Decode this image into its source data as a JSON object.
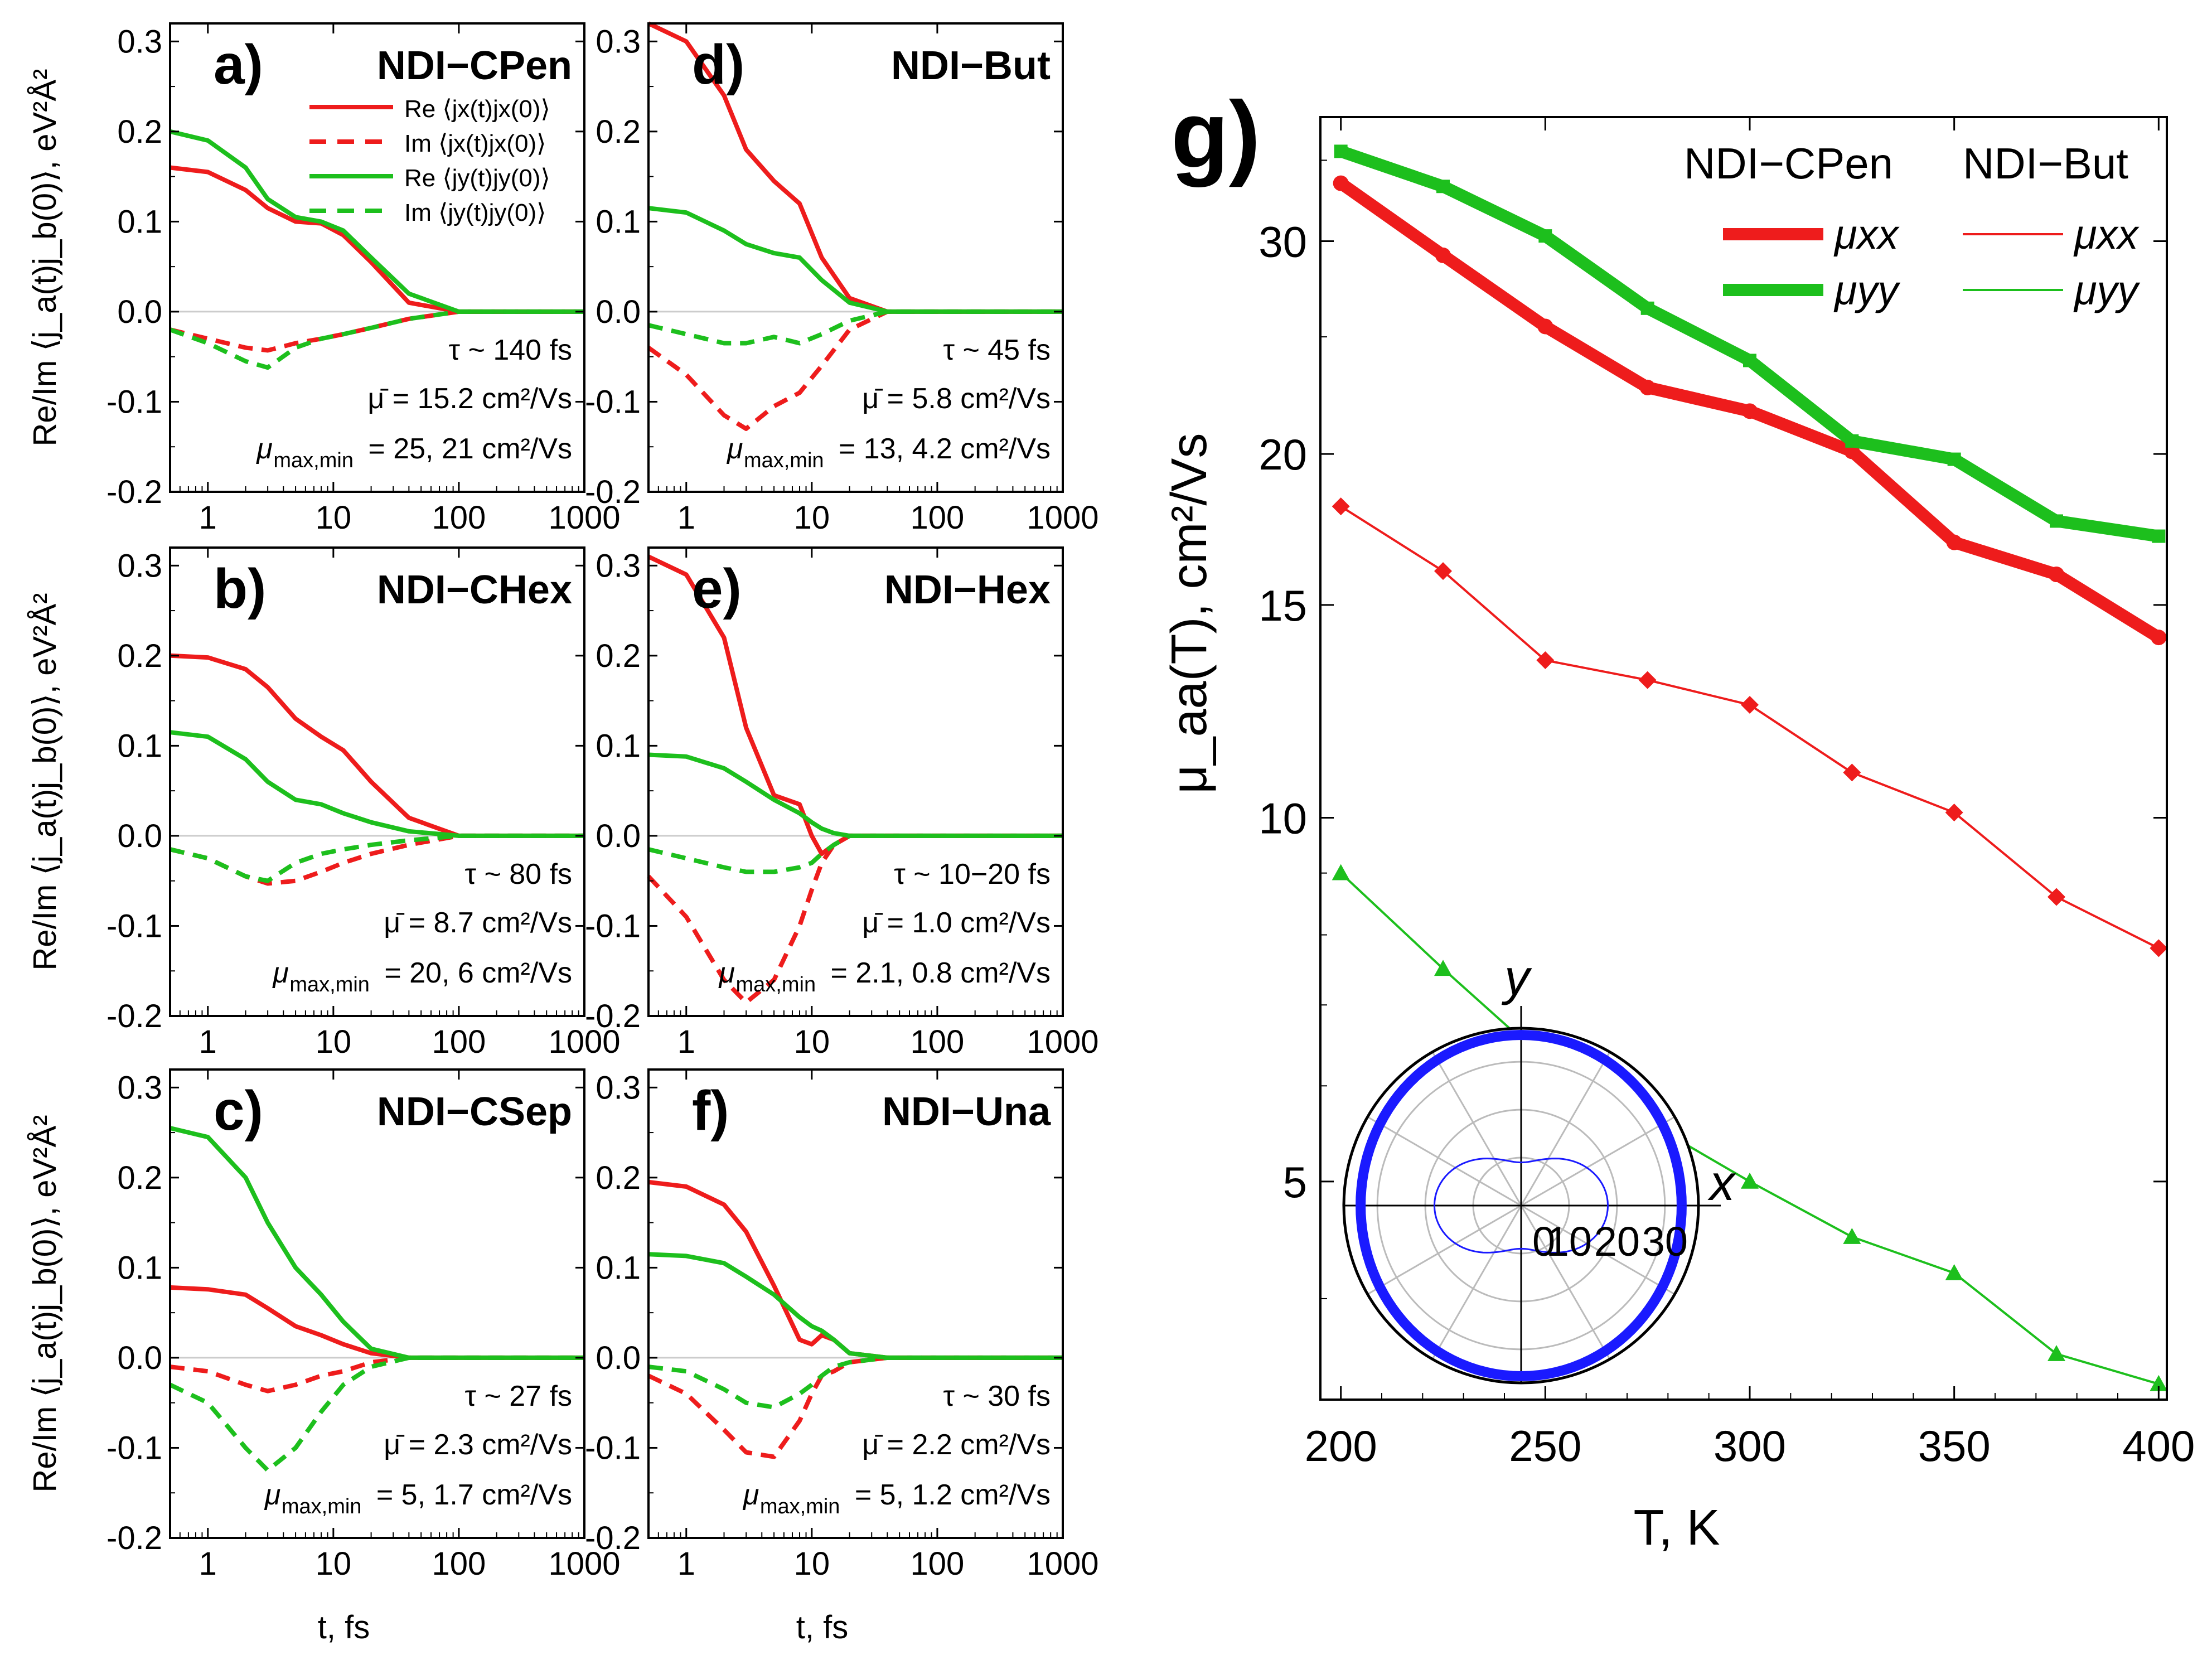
{
  "chart_data": [
    {
      "type": "line",
      "panel": "a)",
      "title": "NDI−CPen",
      "xscale": "log",
      "xlim": [
        0.5,
        1000
      ],
      "ylim": [
        -0.2,
        0.32
      ],
      "xticks": [
        "1",
        "10",
        "100",
        "1000"
      ],
      "yticks": [
        "0.3",
        "0.2",
        "0.1",
        "0.0",
        "-0.1",
        "-0.2"
      ],
      "xlabel": "t, fs",
      "ylabel": "Re/Im ⟨j_a(t)j_b(0)⟩, eV²Å²",
      "legend": [
        "Re ⟨jx(t)jx(0)⟩",
        "Im ⟨jx(t)jx(0)⟩",
        "Re ⟨jy(t)jy(0)⟩",
        "Im ⟨jy(t)jy(0)⟩"
      ],
      "tau_text": "τ ~ 140 fs",
      "mu_bar_text": "μ̄ = 15.2 cm²/Vs",
      "mu_maxmin_text": "= 25, 21 cm²/Vs",
      "series": [
        {
          "name": "Re jx",
          "x": [
            0.5,
            1,
            2,
            3,
            5,
            8,
            12,
            20,
            40,
            100,
            1000
          ],
          "y": [
            0.16,
            0.155,
            0.135,
            0.115,
            0.1,
            0.098,
            0.085,
            0.055,
            0.01,
            0.0,
            0.0
          ]
        },
        {
          "name": "Im jx",
          "x": [
            0.5,
            1,
            2,
            3,
            5,
            8,
            12,
            20,
            40,
            100,
            1000
          ],
          "y": [
            -0.02,
            -0.03,
            -0.04,
            -0.043,
            -0.035,
            -0.03,
            -0.025,
            -0.018,
            -0.008,
            0.0,
            0.0
          ]
        },
        {
          "name": "Re jy",
          "x": [
            0.5,
            1,
            2,
            3,
            5,
            8,
            12,
            20,
            40,
            100,
            1000
          ],
          "y": [
            0.2,
            0.19,
            0.16,
            0.125,
            0.105,
            0.1,
            0.09,
            0.06,
            0.02,
            0.0,
            0.0
          ]
        },
        {
          "name": "Im jy",
          "x": [
            0.5,
            1,
            2,
            3,
            5,
            8,
            12,
            20,
            40,
            100,
            1000
          ],
          "y": [
            -0.02,
            -0.035,
            -0.055,
            -0.062,
            -0.04,
            -0.03,
            -0.025,
            -0.018,
            -0.008,
            0.0,
            0.0
          ]
        }
      ]
    },
    {
      "type": "line",
      "panel": "b)",
      "title": "NDI−CHex",
      "xscale": "log",
      "xlim": [
        0.5,
        1000
      ],
      "ylim": [
        -0.2,
        0.32
      ],
      "xticks": [
        "1",
        "10",
        "100",
        "1000"
      ],
      "yticks": [
        "0.3",
        "0.2",
        "0.1",
        "0.0",
        "-0.1",
        "-0.2"
      ],
      "xlabel": "t, fs",
      "ylabel": "Re/Im ⟨j_a(t)j_b(0)⟩, eV²Å²",
      "tau_text": "τ ~ 80 fs",
      "mu_bar_text": "μ̄ = 8.7 cm²/Vs",
      "mu_maxmin_text": "= 20, 6 cm²/Vs",
      "series": [
        {
          "name": "Re jx",
          "x": [
            0.5,
            1,
            2,
            3,
            5,
            8,
            12,
            20,
            40,
            100,
            1000
          ],
          "y": [
            0.2,
            0.198,
            0.185,
            0.165,
            0.13,
            0.11,
            0.095,
            0.06,
            0.02,
            0.0,
            0.0
          ]
        },
        {
          "name": "Im jx",
          "x": [
            0.5,
            1,
            2,
            3,
            5,
            8,
            12,
            20,
            40,
            100,
            1000
          ],
          "y": [
            -0.015,
            -0.025,
            -0.045,
            -0.053,
            -0.05,
            -0.04,
            -0.03,
            -0.02,
            -0.01,
            0.0,
            0.0
          ]
        },
        {
          "name": "Re jy",
          "x": [
            0.5,
            1,
            2,
            3,
            5,
            8,
            12,
            20,
            40,
            100,
            1000
          ],
          "y": [
            0.115,
            0.11,
            0.085,
            0.06,
            0.04,
            0.035,
            0.025,
            0.015,
            0.005,
            0.0,
            0.0
          ]
        },
        {
          "name": "Im jy",
          "x": [
            0.5,
            1,
            2,
            3,
            5,
            8,
            12,
            20,
            40,
            100,
            1000
          ],
          "y": [
            -0.015,
            -0.025,
            -0.045,
            -0.05,
            -0.03,
            -0.02,
            -0.015,
            -0.01,
            -0.005,
            0.0,
            0.0
          ]
        }
      ]
    },
    {
      "type": "line",
      "panel": "c)",
      "title": "NDI−CSep",
      "xscale": "log",
      "xlim": [
        0.5,
        1000
      ],
      "ylim": [
        -0.2,
        0.32
      ],
      "xticks": [
        "1",
        "10",
        "100",
        "1000"
      ],
      "yticks": [
        "0.3",
        "0.2",
        "0.1",
        "0.0",
        "-0.1",
        "-0.2"
      ],
      "xlabel": "t, fs",
      "ylabel": "Re/Im ⟨j_a(t)j_b(0)⟩, eV²Å²",
      "tau_text": "τ ~ 27 fs",
      "mu_bar_text": "μ̄ = 2.3 cm²/Vs",
      "mu_maxmin_text": "= 5, 1.7 cm²/Vs",
      "series": [
        {
          "name": "Re jx",
          "x": [
            0.5,
            1,
            2,
            3,
            5,
            8,
            12,
            20,
            40,
            100,
            1000
          ],
          "y": [
            0.078,
            0.076,
            0.07,
            0.055,
            0.035,
            0.025,
            0.015,
            0.005,
            0.0,
            0.0,
            0.0
          ]
        },
        {
          "name": "Im jx",
          "x": [
            0.5,
            1,
            2,
            3,
            5,
            8,
            12,
            20,
            40,
            100,
            1000
          ],
          "y": [
            -0.01,
            -0.015,
            -0.03,
            -0.037,
            -0.03,
            -0.02,
            -0.015,
            -0.005,
            0.0,
            0.0,
            0.0
          ]
        },
        {
          "name": "Re jy",
          "x": [
            0.5,
            1,
            2,
            3,
            5,
            8,
            12,
            20,
            40,
            100,
            1000
          ],
          "y": [
            0.255,
            0.245,
            0.2,
            0.15,
            0.1,
            0.07,
            0.04,
            0.01,
            0.0,
            0.0,
            0.0
          ]
        },
        {
          "name": "Im jy",
          "x": [
            0.5,
            1,
            2,
            3,
            5,
            8,
            12,
            20,
            40,
            100,
            1000
          ],
          "y": [
            -0.03,
            -0.05,
            -0.1,
            -0.125,
            -0.1,
            -0.06,
            -0.03,
            -0.01,
            0.0,
            0.0,
            0.0
          ]
        }
      ]
    },
    {
      "type": "line",
      "panel": "d)",
      "title": "NDI−But",
      "xscale": "log",
      "xlim": [
        0.5,
        1000
      ],
      "ylim": [
        -0.2,
        0.32
      ],
      "xticks": [
        "1",
        "10",
        "100",
        "1000"
      ],
      "yticks": [
        "0.3",
        "0.2",
        "0.1",
        "0.0",
        "-0.1",
        "-0.2"
      ],
      "xlabel": "t, fs",
      "ylabel": "",
      "tau_text": "τ ~ 45 fs",
      "mu_bar_text": "μ̄ = 5.8 cm²/Vs",
      "mu_maxmin_text": "= 13, 4.2 cm²/Vs",
      "series": [
        {
          "name": "Re jx",
          "x": [
            0.5,
            1,
            2,
            3,
            5,
            8,
            12,
            20,
            40,
            100,
            1000
          ],
          "y": [
            0.32,
            0.3,
            0.24,
            0.18,
            0.145,
            0.12,
            0.06,
            0.015,
            0.0,
            0.0,
            0.0
          ]
        },
        {
          "name": "Im jx",
          "x": [
            0.5,
            1,
            2,
            3,
            5,
            8,
            12,
            20,
            40,
            100,
            1000
          ],
          "y": [
            -0.04,
            -0.07,
            -0.115,
            -0.13,
            -0.105,
            -0.09,
            -0.06,
            -0.02,
            0.0,
            0.0,
            0.0
          ]
        },
        {
          "name": "Re jy",
          "x": [
            0.5,
            1,
            2,
            3,
            5,
            8,
            12,
            20,
            40,
            100,
            1000
          ],
          "y": [
            0.115,
            0.11,
            0.09,
            0.075,
            0.065,
            0.06,
            0.035,
            0.01,
            0.0,
            0.0,
            0.0
          ]
        },
        {
          "name": "Im jy",
          "x": [
            0.5,
            1,
            2,
            3,
            5,
            8,
            12,
            20,
            40,
            100,
            1000
          ],
          "y": [
            -0.015,
            -0.025,
            -0.035,
            -0.035,
            -0.028,
            -0.035,
            -0.025,
            -0.01,
            0.0,
            0.0,
            0.0
          ]
        }
      ]
    },
    {
      "type": "line",
      "panel": "e)",
      "title": "NDI−Hex",
      "xscale": "log",
      "xlim": [
        0.5,
        1000
      ],
      "ylim": [
        -0.2,
        0.32
      ],
      "xticks": [
        "1",
        "10",
        "100",
        "1000"
      ],
      "yticks": [
        "0.3",
        "0.2",
        "0.1",
        "0.0",
        "-0.1",
        "-0.2"
      ],
      "xlabel": "t, fs",
      "ylabel": "",
      "tau_text": "τ ~ 10−20 fs",
      "mu_bar_text": "μ̄ = 1.0 cm²/Vs",
      "mu_maxmin_text": "= 2.1, 0.8 cm²/Vs",
      "series": [
        {
          "name": "Re jx",
          "x": [
            0.5,
            1,
            2,
            3,
            5,
            8,
            10,
            12,
            15,
            20,
            40,
            100,
            1000
          ],
          "y": [
            0.31,
            0.29,
            0.22,
            0.12,
            0.045,
            0.035,
            0.0,
            -0.02,
            -0.01,
            0.0,
            0.0,
            0.0,
            0.0
          ]
        },
        {
          "name": "Im jx",
          "x": [
            0.5,
            1,
            2,
            3,
            5,
            8,
            10,
            12,
            15,
            20,
            40,
            100,
            1000
          ],
          "y": [
            -0.045,
            -0.09,
            -0.16,
            -0.185,
            -0.16,
            -0.1,
            -0.06,
            -0.03,
            -0.01,
            0.0,
            0.0,
            0.0,
            0.0
          ]
        },
        {
          "name": "Re jy",
          "x": [
            0.5,
            1,
            2,
            3,
            5,
            8,
            10,
            12,
            15,
            20,
            40,
            100,
            1000
          ],
          "y": [
            0.09,
            0.088,
            0.075,
            0.06,
            0.04,
            0.025,
            0.015,
            0.008,
            0.003,
            0.0,
            0.0,
            0.0,
            0.0
          ]
        },
        {
          "name": "Im jy",
          "x": [
            0.5,
            1,
            2,
            3,
            5,
            8,
            10,
            12,
            15,
            20,
            40,
            100,
            1000
          ],
          "y": [
            -0.015,
            -0.025,
            -0.035,
            -0.04,
            -0.04,
            -0.035,
            -0.03,
            -0.02,
            -0.01,
            0.0,
            0.0,
            0.0,
            0.0
          ]
        }
      ]
    },
    {
      "type": "line",
      "panel": "f)",
      "title": "NDI−Una",
      "xscale": "log",
      "xlim": [
        0.5,
        1000
      ],
      "ylim": [
        -0.2,
        0.32
      ],
      "xticks": [
        "1",
        "10",
        "100",
        "1000"
      ],
      "yticks": [
        "0.3",
        "0.2",
        "0.1",
        "0.0",
        "-0.1",
        "-0.2"
      ],
      "xlabel": "t, fs",
      "ylabel": "",
      "tau_text": "τ ~ 30 fs",
      "mu_bar_text": "μ̄ = 2.2 cm²/Vs",
      "mu_maxmin_text": "= 5, 1.2 cm²/Vs",
      "series": [
        {
          "name": "Re jx",
          "x": [
            0.5,
            1,
            2,
            3,
            5,
            8,
            10,
            12,
            15,
            20,
            40,
            100,
            1000
          ],
          "y": [
            0.195,
            0.19,
            0.17,
            0.14,
            0.08,
            0.02,
            0.015,
            0.025,
            0.02,
            0.005,
            0.0,
            0.0,
            0.0
          ]
        },
        {
          "name": "Im jx",
          "x": [
            0.5,
            1,
            2,
            3,
            5,
            8,
            10,
            12,
            15,
            20,
            40,
            100,
            1000
          ],
          "y": [
            -0.02,
            -0.04,
            -0.08,
            -0.105,
            -0.11,
            -0.07,
            -0.04,
            -0.02,
            -0.015,
            -0.005,
            0.0,
            0.0,
            0.0
          ]
        },
        {
          "name": "Re jy",
          "x": [
            0.5,
            1,
            2,
            3,
            5,
            8,
            10,
            12,
            15,
            20,
            40,
            100,
            1000
          ],
          "y": [
            0.115,
            0.113,
            0.105,
            0.09,
            0.07,
            0.045,
            0.035,
            0.03,
            0.02,
            0.005,
            0.0,
            0.0,
            0.0
          ]
        },
        {
          "name": "Im jy",
          "x": [
            0.5,
            1,
            2,
            3,
            5,
            8,
            10,
            12,
            15,
            20,
            40,
            100,
            1000
          ],
          "y": [
            -0.01,
            -0.015,
            -0.035,
            -0.05,
            -0.055,
            -0.04,
            -0.03,
            -0.02,
            -0.01,
            -0.005,
            0.0,
            0.0,
            0.0
          ]
        }
      ]
    },
    {
      "type": "line",
      "panel": "g)",
      "xscale": "linear",
      "yscale": "log",
      "xlim": [
        195,
        402
      ],
      "ylim": [
        3.3,
        38
      ],
      "xticks": [
        "200",
        "250",
        "300",
        "350",
        "400"
      ],
      "yticks": [
        "5",
        "10",
        "15",
        "20",
        "30"
      ],
      "xlabel": "T, K",
      "ylabel": "μ_aa(T), cm²/Vs",
      "legend_titles": [
        "NDI−CPen",
        "NDI−But"
      ],
      "legend_items": [
        "μxx",
        "μyy",
        "μxx",
        "μyy"
      ],
      "x": [
        200,
        225,
        250,
        275,
        300,
        325,
        350,
        375,
        400
      ],
      "series": [
        {
          "name": "NDI-CPen μxx",
          "values": [
            33.5,
            29.2,
            25.5,
            22.7,
            21.7,
            20.1,
            16.9,
            15.9,
            14.1
          ]
        },
        {
          "name": "NDI-CPen μyy",
          "values": [
            35.6,
            33.3,
            30.3,
            26.4,
            23.9,
            20.5,
            19.8,
            17.6,
            17.1
          ]
        },
        {
          "name": "NDI-But μxx",
          "values": [
            18.1,
            16.0,
            13.5,
            13.0,
            12.4,
            10.9,
            10.1,
            8.6,
            7.8
          ]
        },
        {
          "name": "NDI-But μyy",
          "values": [
            9.0,
            7.5,
            6.3,
            5.6,
            5.0,
            4.5,
            4.2,
            3.6,
            3.4
          ]
        }
      ],
      "polar_inset": {
        "type": "polar",
        "axis_labels": [
          "x",
          "y"
        ],
        "radial_ticks": [
          "0",
          "10",
          "20",
          "30"
        ],
        "rmax": 37,
        "series": [
          {
            "name": "NDI-CPen μ(θ)",
            "mu_xx": 33.5,
            "mu_yy": 35.6
          },
          {
            "name": "NDI-But μ(θ)",
            "mu_xx": 18.1,
            "mu_yy": 9.0
          }
        ]
      }
    }
  ],
  "colors": {
    "red": "#ee1c1c",
    "green": "#1dbf1d",
    "blue": "#1a1aff",
    "grid": "#bbbbbb"
  }
}
